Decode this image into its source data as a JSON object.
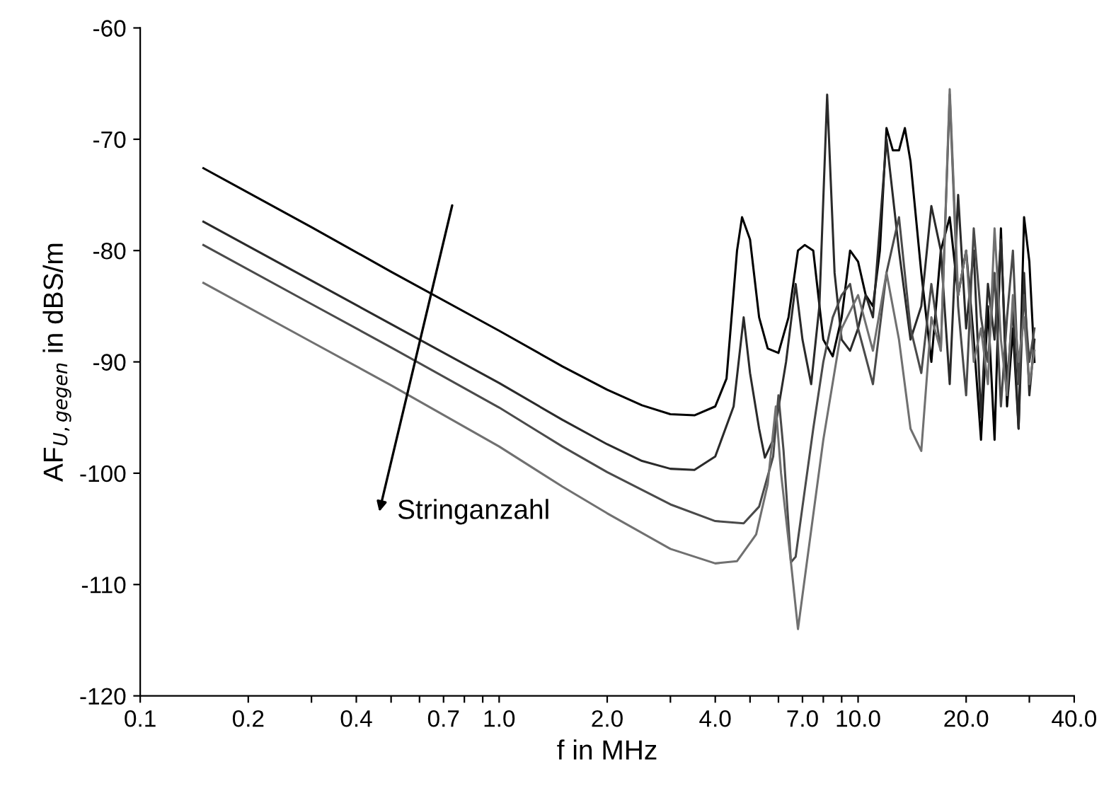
{
  "chart_data": {
    "type": "line",
    "xlabel": "f in MHz",
    "ylabel": "AF$_{U,gegen}$ in dBS/m",
    "log": "x",
    "marker": "none",
    "line_style": "solid",
    "xlim": [
      0.1,
      40
    ],
    "ylim": [
      -120,
      -60
    ],
    "xticks": [
      0.1,
      0.2,
      {
        "value": 0.3,
        "label": null
      },
      0.4,
      {
        "value": 0.5,
        "label": null
      },
      {
        "value": 0.6,
        "label": null
      },
      0.7,
      {
        "value": 0.8,
        "label": null
      },
      {
        "value": 0.9,
        "label": null
      },
      {
        "value": 1,
        "label": "1.0"
      },
      {
        "value": 2,
        "label": "2.0"
      },
      {
        "value": 3,
        "label": null
      },
      {
        "value": 4,
        "label": "4.0"
      },
      {
        "value": 5,
        "label": null
      },
      {
        "value": 6,
        "label": null
      },
      {
        "value": 7,
        "label": "7.0"
      },
      {
        "value": 8,
        "label": null
      },
      {
        "value": 9,
        "label": null
      },
      {
        "value": 10,
        "label": "10.0"
      },
      {
        "value": 20,
        "label": "20.0"
      },
      {
        "value": 30,
        "label": null
      },
      {
        "value": 40,
        "label": "40.0"
      }
    ],
    "yticks": [
      -120,
      -110,
      -100,
      -90,
      -80,
      -70,
      -60
    ],
    "annotations": [
      "Stringanzahl"
    ],
    "series": [
      {
        "color": "#000000",
        "x": [
          0.15,
          0.3,
          0.5,
          1.0,
          1.5,
          2.0,
          2.5,
          3.0,
          3.5,
          4.0,
          4.3,
          4.6,
          4.75,
          5.0,
          5.3,
          5.6,
          6.0,
          6.4,
          6.8,
          7.1,
          7.5,
          8.0,
          8.5,
          9.0,
          9.5,
          10.0,
          10.5,
          11.0,
          11.5,
          12.0,
          12.5,
          13.0,
          13.5,
          14.0,
          15.0,
          16.0,
          17.0,
          18.0,
          19.0,
          20.0,
          21.0,
          22.0,
          23.0,
          24.0,
          25.0,
          26.0,
          27.0,
          28.0,
          29.0,
          30.0,
          31.0
        ],
        "values": [
          -72.6,
          -77.9,
          -81.9,
          -87.2,
          -90.4,
          -92.5,
          -93.9,
          -94.7,
          -94.8,
          -94.0,
          -91.5,
          -80,
          -77,
          -79,
          -86,
          -88.8,
          -89.2,
          -86,
          -80,
          -79.5,
          -80,
          -88,
          -89.5,
          -86,
          -80,
          -81,
          -84,
          -85,
          -80,
          -69,
          -71,
          -71,
          -69,
          -72,
          -82,
          -90,
          -80,
          -77,
          -84,
          -80,
          -88,
          -97,
          -85,
          -97,
          -78,
          -94,
          -87,
          -96,
          -77,
          -81,
          -90
        ]
      },
      {
        "color": "#2a2a2a",
        "x": [
          0.15,
          0.3,
          0.5,
          1.0,
          1.5,
          2.0,
          2.5,
          3.0,
          3.5,
          4.0,
          4.5,
          4.8,
          5.0,
          5.3,
          5.5,
          5.8,
          6.3,
          6.7,
          7.0,
          7.4,
          7.8,
          8.2,
          8.6,
          9.0,
          9.5,
          10.0,
          10.5,
          11.0,
          12.0,
          13.0,
          14.0,
          15.0,
          16.0,
          17.0,
          18.0,
          19.0,
          20.0,
          21.0,
          22.0,
          23.0,
          24.0,
          25.0,
          26.0,
          27.0,
          28.0,
          29.0,
          30.0,
          31.0
        ],
        "values": [
          -77.4,
          -82.7,
          -86.6,
          -91.9,
          -95.2,
          -97.4,
          -98.9,
          -99.6,
          -99.7,
          -98.5,
          -94,
          -86,
          -91,
          -96,
          -98.6,
          -97,
          -90,
          -83,
          -88,
          -92,
          -85,
          -66,
          -82,
          -88,
          -89,
          -87,
          -84,
          -86,
          -70,
          -80,
          -88,
          -85,
          -76,
          -80,
          -92,
          -75,
          -87,
          -80,
          -95,
          -83,
          -88,
          -79,
          -92,
          -85,
          -96,
          -82,
          -93,
          -88
        ]
      },
      {
        "color": "#4a4a4a",
        "x": [
          0.15,
          0.3,
          0.5,
          1.0,
          1.5,
          2.0,
          3.0,
          4.0,
          4.8,
          5.3,
          5.8,
          6.0,
          6.2,
          6.5,
          6.7,
          7.0,
          7.5,
          8.0,
          8.5,
          9.0,
          9.5,
          10.0,
          11.0,
          12.0,
          13.0,
          14.0,
          15.0,
          16.0,
          17.0,
          18.0,
          19.0,
          20.0,
          21.0,
          22.0,
          23.0,
          24.0,
          25.0,
          26.0,
          27.0,
          28.0,
          29.0,
          30.0,
          31.0
        ],
        "values": [
          -79.5,
          -84.8,
          -88.7,
          -94.1,
          -97.6,
          -99.9,
          -102.8,
          -104.3,
          -104.5,
          -103,
          -98.5,
          -93,
          -98,
          -108,
          -107.5,
          -103,
          -96,
          -90,
          -86,
          -84,
          -83,
          -87,
          -92,
          -82,
          -77,
          -87,
          -91,
          -83,
          -89,
          -66,
          -85,
          -93,
          -78,
          -86,
          -90,
          -82,
          -94,
          -86,
          -80,
          -92,
          -84,
          -90,
          -87
        ]
      },
      {
        "color": "#707070",
        "x": [
          0.15,
          0.3,
          0.5,
          1.0,
          1.5,
          2.0,
          3.0,
          4.0,
          4.6,
          5.2,
          5.6,
          5.9,
          6.1,
          6.5,
          6.8,
          7.2,
          8.0,
          9.0,
          10.0,
          11.0,
          12.0,
          13.0,
          14.0,
          15.0,
          16.0,
          17.0,
          18.0,
          19.0,
          20.0,
          21.0,
          22.0,
          23.0,
          24.0,
          25.0,
          26.0,
          27.0,
          28.0,
          29.0,
          30.0,
          31.0
        ],
        "values": [
          -82.9,
          -88.2,
          -92.1,
          -97.6,
          -101.2,
          -103.6,
          -106.8,
          -108.1,
          -107.9,
          -105.5,
          -101,
          -94,
          -100,
          -108,
          -114,
          -108,
          -97,
          -87,
          -84,
          -89,
          -82,
          -88,
          -96,
          -98,
          -86,
          -89,
          -65.5,
          -84,
          -80,
          -90,
          -87,
          -92,
          -78,
          -88,
          -93,
          -84,
          -90,
          -86,
          -92,
          -89
        ]
      }
    ]
  }
}
